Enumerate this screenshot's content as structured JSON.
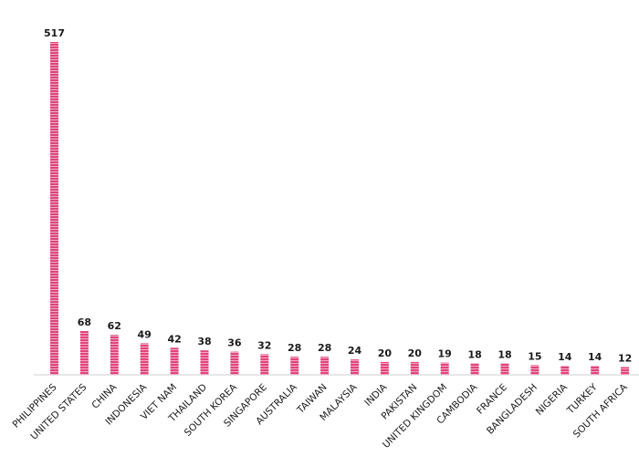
{
  "chart_data": {
    "type": "bar",
    "categories": [
      "PHILIPPINES",
      "UNITED STATES",
      "CHINA",
      "INDONESIA",
      "VIET NAM",
      "THAILAND",
      "SOUTH KOREA",
      "SINGAPORE",
      "AUSTRALIA",
      "TAIWAN",
      "MALAYSIA",
      "INDIA",
      "PAKISTAN",
      "UNITED KINGDOM",
      "CAMBODIA",
      "FRANCE",
      "BANGLADESH",
      "NIGERIA",
      "TURKEY",
      "SOUTH AFRICA"
    ],
    "values": [
      517,
      68,
      62,
      49,
      42,
      38,
      36,
      32,
      28,
      28,
      24,
      20,
      20,
      19,
      18,
      18,
      15,
      14,
      14,
      12
    ],
    "ylim": [
      0,
      517
    ],
    "grid": false,
    "legend": "none",
    "bar_color": "#e0457b",
    "bar_stripe_color": "#f3a9c4"
  }
}
